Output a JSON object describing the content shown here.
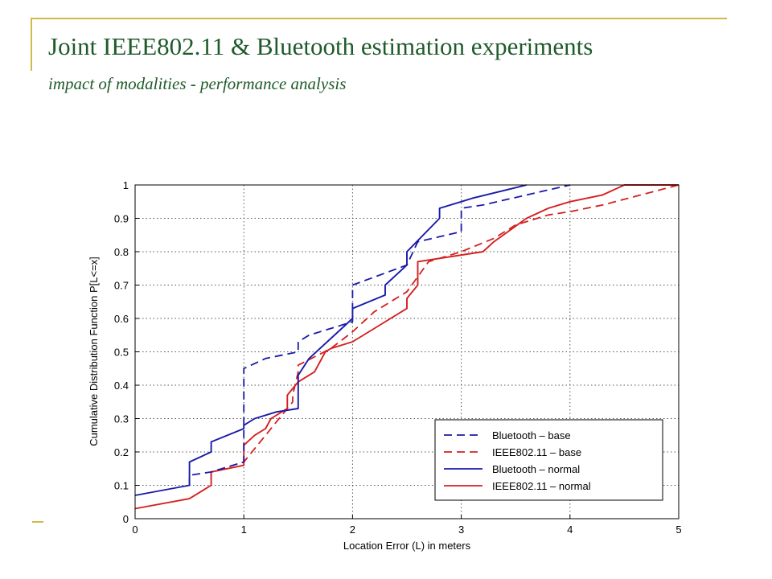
{
  "slide": {
    "title": "Joint  IEEE802.11 & Bluetooth estimation experiments",
    "subtitle": "impact of modalities - performance analysis"
  },
  "colors": {
    "accent_line": "#d4b84a",
    "title_text": "#1f5a2a",
    "blue": "#1a1aa8",
    "red": "#d42020"
  },
  "chart_data": {
    "type": "line",
    "xlabel": "Location Error (L) in meters",
    "ylabel": "Cumulative Distribution Function P[L<=x]",
    "xlim": [
      0,
      5
    ],
    "ylim": [
      0,
      1
    ],
    "xticks": [
      "0",
      "1",
      "2",
      "3",
      "4",
      "5"
    ],
    "yticks": [
      "0",
      "0.1",
      "0.2",
      "0.3",
      "0.4",
      "0.5",
      "0.6",
      "0.7",
      "0.8",
      "0.9",
      "1"
    ],
    "grid": true,
    "legend_position": "bottom-right",
    "series": [
      {
        "name": "Bluetooth – base",
        "color": "#1a1aa8",
        "dash": true,
        "x": [
          0.5,
          0.5,
          0.7,
          1.0,
          1.0,
          1.2,
          1.5,
          1.5,
          1.6,
          2.0,
          2.0,
          2.5,
          2.6,
          3.0,
          3.0,
          3.2,
          4.0
        ],
        "y": [
          0.1,
          0.13,
          0.14,
          0.17,
          0.45,
          0.48,
          0.5,
          0.53,
          0.55,
          0.59,
          0.7,
          0.76,
          0.83,
          0.86,
          0.93,
          0.94,
          1.0
        ]
      },
      {
        "name": "IEEE802.11 – base",
        "color": "#d42020",
        "dash": true,
        "x": [
          0.7,
          0.7,
          1.0,
          1.2,
          1.45,
          1.45,
          1.5,
          1.5,
          1.8,
          2.0,
          2.2,
          2.5,
          2.7,
          3.0,
          3.3,
          3.5,
          3.8,
          4.0,
          4.3,
          5.0
        ],
        "y": [
          0.12,
          0.14,
          0.17,
          0.25,
          0.35,
          0.37,
          0.44,
          0.46,
          0.51,
          0.56,
          0.62,
          0.68,
          0.77,
          0.8,
          0.84,
          0.88,
          0.91,
          0.92,
          0.94,
          1.0
        ]
      },
      {
        "name": "Bluetooth – normal",
        "color": "#1a1aa8",
        "dash": false,
        "x": [
          0.0,
          0.5,
          0.5,
          0.7,
          0.7,
          1.0,
          1.0,
          1.1,
          1.3,
          1.5,
          1.5,
          1.6,
          1.9,
          2.0,
          2.0,
          2.3,
          2.3,
          2.5,
          2.5,
          2.8,
          2.8,
          3.0,
          3.1,
          3.6
        ],
        "y": [
          0.07,
          0.1,
          0.17,
          0.2,
          0.23,
          0.27,
          0.28,
          0.3,
          0.32,
          0.33,
          0.43,
          0.48,
          0.57,
          0.6,
          0.63,
          0.67,
          0.7,
          0.76,
          0.8,
          0.9,
          0.93,
          0.95,
          0.96,
          1.0
        ]
      },
      {
        "name": "IEEE802.11 – normal",
        "color": "#d42020",
        "dash": false,
        "x": [
          0.0,
          0.5,
          0.7,
          0.7,
          1.0,
          1.0,
          1.1,
          1.2,
          1.25,
          1.4,
          1.4,
          1.5,
          1.65,
          1.75,
          1.8,
          2.0,
          2.2,
          2.35,
          2.5,
          2.5,
          2.6,
          2.6,
          3.2,
          3.3,
          3.6,
          3.8,
          4.0,
          4.3,
          4.5,
          5.0
        ],
        "y": [
          0.03,
          0.06,
          0.1,
          0.14,
          0.16,
          0.22,
          0.25,
          0.27,
          0.3,
          0.33,
          0.37,
          0.41,
          0.44,
          0.5,
          0.51,
          0.53,
          0.57,
          0.6,
          0.63,
          0.66,
          0.7,
          0.77,
          0.8,
          0.83,
          0.9,
          0.93,
          0.95,
          0.97,
          1.0,
          1.0
        ]
      }
    ]
  }
}
